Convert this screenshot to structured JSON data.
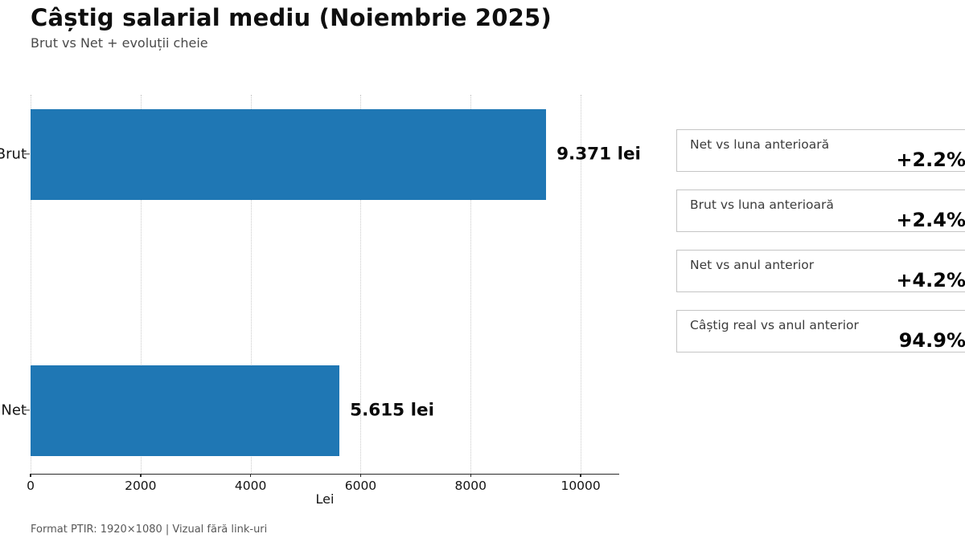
{
  "meta": {
    "background": "#ffffff",
    "accent_color": "#1f77b4",
    "grid_color": "#c9c9c9",
    "box_border_color": "#c5c5c5"
  },
  "header": {
    "title": "Câștig salarial mediu (Noiembrie 2025)",
    "subtitle": "Brut vs Net + evoluții cheie"
  },
  "chart_data": {
    "type": "bar",
    "orientation": "horizontal",
    "categories": [
      "Brut",
      "Net"
    ],
    "values": [
      9371,
      5615
    ],
    "value_labels": [
      "9.371 lei",
      "5.615 lei"
    ],
    "title": "Câștig salarial mediu (Noiembrie 2025)",
    "xlabel": "Lei",
    "ylabel": "",
    "xticks": [
      0,
      2000,
      4000,
      6000,
      8000,
      10000
    ],
    "xlim": [
      0,
      10700
    ],
    "bar_color": "#1f77b4",
    "grid": "vertical-dotted",
    "legend": "none"
  },
  "stats": [
    {
      "label": "Net vs luna anterioară",
      "value": "+2.2%"
    },
    {
      "label": "Brut vs luna anterioară",
      "value": "+2.4%"
    },
    {
      "label": "Net vs anul anterior",
      "value": "+4.2%"
    },
    {
      "label": "Câștig real vs anul anterior",
      "value": "94.9%"
    }
  ],
  "footer": {
    "note": "Format PTIR: 1920×1080 | Vizual fără link-uri"
  }
}
